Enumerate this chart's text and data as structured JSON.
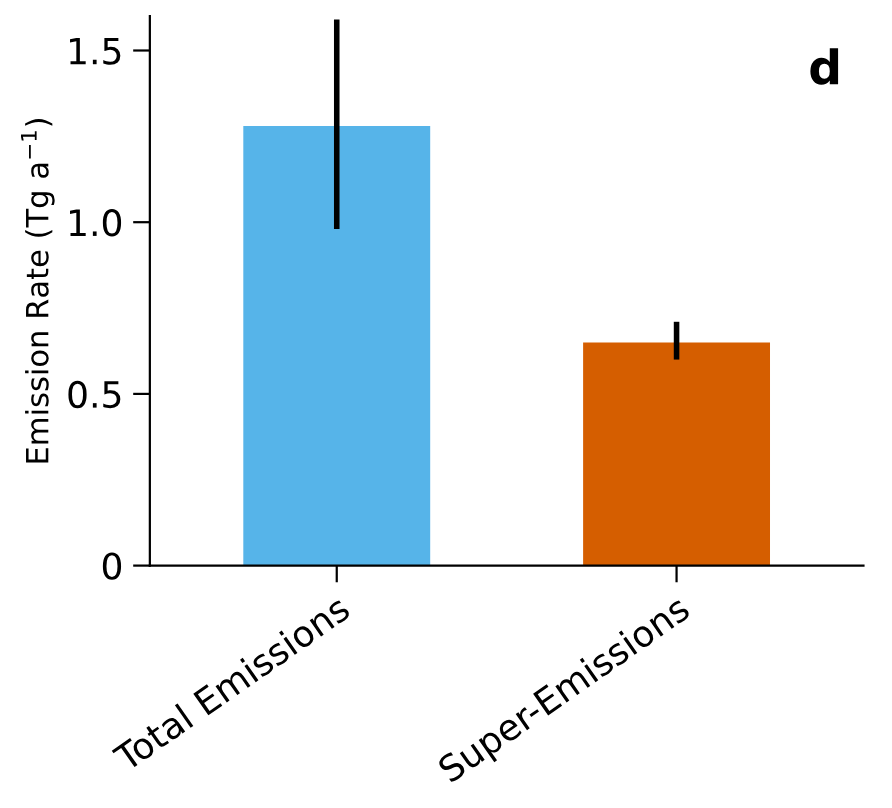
{
  "chart_data": {
    "type": "bar",
    "ylabel": "Emission Rate (Tg a$^{−1}$)",
    "categories": [
      "Total Emissions",
      "Super-Emissions"
    ],
    "values": [
      1.28,
      0.65
    ],
    "colors": [
      "#56b4e9",
      "#d55e00"
    ],
    "errors": [
      [
        0.98,
        1.59
      ],
      [
        0.6,
        0.71
      ]
    ],
    "ylim": [
      0,
      1.6
    ],
    "yticks": [
      {
        "value": 0,
        "label": "0"
      },
      0.5,
      {
        "value": 1.0,
        "label": "1.0"
      },
      1.5
    ],
    "grid": false,
    "legend": false,
    "annotations": [
      "d"
    ]
  }
}
